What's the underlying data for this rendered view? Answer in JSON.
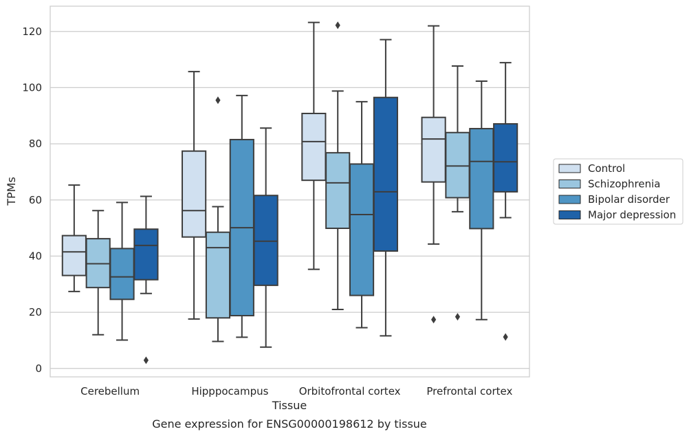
{
  "chart_data": {
    "type": "box",
    "xlabel": "Tissue",
    "ylabel": "TPMs",
    "caption": "Gene expression for ENSG00000198612 by tissue",
    "ylim": [
      -3,
      129
    ],
    "yticks": [
      0,
      20,
      40,
      60,
      80,
      100,
      120
    ],
    "grid": "horizontal",
    "legend_position": "right",
    "colors": [
      "#d0e0f0",
      "#9ac6df",
      "#4f95c4",
      "#1f62a8"
    ],
    "categories": [
      "Cerebellum",
      "Hipppocampus",
      "Orbitofrontal cortex",
      "Prefrontal cortex"
    ],
    "series": [
      {
        "name": "Control",
        "boxes": [
          {
            "whisker_low": 27.4,
            "q1": 33.1,
            "median": 41.5,
            "q3": 47.3,
            "whisker_high": 65.3,
            "outliers": []
          },
          {
            "whisker_low": 17.6,
            "q1": 46.8,
            "median": 56.2,
            "q3": 77.4,
            "whisker_high": 105.7,
            "outliers": []
          },
          {
            "whisker_low": 35.3,
            "q1": 67.0,
            "median": 80.8,
            "q3": 90.8,
            "whisker_high": 123.2,
            "outliers": []
          },
          {
            "whisker_low": 44.3,
            "q1": 66.4,
            "median": 81.7,
            "q3": 89.4,
            "whisker_high": 122.0,
            "outliers": [
              17.4
            ]
          }
        ]
      },
      {
        "name": "Schizophrenia",
        "boxes": [
          {
            "whisker_low": 12.0,
            "q1": 28.8,
            "median": 37.3,
            "q3": 46.2,
            "whisker_high": 56.2,
            "outliers": []
          },
          {
            "whisker_low": 9.6,
            "q1": 18.0,
            "median": 43.0,
            "q3": 48.5,
            "whisker_high": 57.6,
            "outliers": [
              95.5
            ]
          },
          {
            "whisker_low": 21.0,
            "q1": 49.9,
            "median": 66.1,
            "q3": 76.8,
            "whisker_high": 98.8,
            "outliers": [
              122.2
            ]
          },
          {
            "whisker_low": 55.8,
            "q1": 60.8,
            "median": 72.1,
            "q3": 84.0,
            "whisker_high": 107.7,
            "outliers": [
              18.4
            ]
          }
        ]
      },
      {
        "name": "Bipolar disorder",
        "boxes": [
          {
            "whisker_low": 10.1,
            "q1": 24.6,
            "median": 32.6,
            "q3": 42.7,
            "whisker_high": 59.1,
            "outliers": []
          },
          {
            "whisker_low": 11.1,
            "q1": 18.8,
            "median": 50.1,
            "q3": 81.5,
            "whisker_high": 97.2,
            "outliers": []
          },
          {
            "whisker_low": 14.5,
            "q1": 26.0,
            "median": 54.8,
            "q3": 72.8,
            "whisker_high": 95.0,
            "outliers": []
          },
          {
            "whisker_low": 17.4,
            "q1": 49.8,
            "median": 73.7,
            "q3": 85.4,
            "whisker_high": 102.3,
            "outliers": []
          }
        ]
      },
      {
        "name": "Major depression",
        "boxes": [
          {
            "whisker_low": 26.7,
            "q1": 31.6,
            "median": 43.8,
            "q3": 49.6,
            "whisker_high": 61.3,
            "outliers": [
              2.9
            ]
          },
          {
            "whisker_low": 7.6,
            "q1": 29.6,
            "median": 45.3,
            "q3": 61.6,
            "whisker_high": 85.6,
            "outliers": []
          },
          {
            "whisker_low": 11.6,
            "q1": 41.8,
            "median": 62.9,
            "q3": 96.5,
            "whisker_high": 117.1,
            "outliers": []
          },
          {
            "whisker_low": 53.7,
            "q1": 62.9,
            "median": 73.6,
            "q3": 87.1,
            "whisker_high": 108.9,
            "outliers": [
              11.2
            ]
          }
        ]
      }
    ]
  }
}
